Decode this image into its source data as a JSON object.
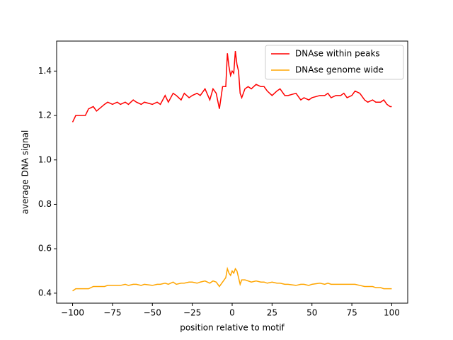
{
  "chart_data": {
    "type": "line",
    "xlabel": "position relative to motif",
    "ylabel": "average DNA signal",
    "xlim": [
      -110,
      110
    ],
    "ylim": [
      0.355,
      1.535
    ],
    "xticks": [
      {
        "value": -100,
        "label": "−100"
      },
      {
        "value": -75,
        "label": "−75"
      },
      {
        "value": -50,
        "label": "−50"
      },
      {
        "value": -25,
        "label": "−25"
      },
      0,
      25,
      50,
      75,
      100
    ],
    "yticks": [
      0.4,
      0.6,
      0.8,
      {
        "value": 1,
        "label": "1.0"
      },
      1.2,
      1.4
    ],
    "legend": "upper right",
    "x": [
      -100,
      -98,
      -95,
      -92,
      -90,
      -87,
      -85,
      -80,
      -78,
      -75,
      -72,
      -70,
      -67,
      -65,
      -62,
      -60,
      -57,
      -55,
      -50,
      -47,
      -45,
      -42,
      -40,
      -37,
      -35,
      -32,
      -30,
      -27,
      -25,
      -22,
      -20,
      -17,
      -14,
      -12,
      -10,
      -8,
      -6,
      -4,
      -3,
      -2,
      -1,
      0,
      1,
      2,
      3,
      4,
      5,
      6,
      8,
      10,
      12,
      15,
      18,
      20,
      22,
      25,
      28,
      30,
      33,
      35,
      40,
      43,
      45,
      48,
      50,
      55,
      58,
      60,
      62,
      65,
      68,
      70,
      72,
      75,
      77,
      80,
      83,
      85,
      88,
      90,
      93,
      95,
      97,
      99,
      100
    ],
    "series": [
      {
        "name": "DNAse within peaks",
        "color": "#ff0000",
        "values": [
          1.17,
          1.2,
          1.2,
          1.2,
          1.23,
          1.24,
          1.22,
          1.25,
          1.26,
          1.25,
          1.26,
          1.25,
          1.26,
          1.25,
          1.27,
          1.26,
          1.25,
          1.26,
          1.25,
          1.26,
          1.25,
          1.29,
          1.26,
          1.3,
          1.29,
          1.27,
          1.3,
          1.28,
          1.29,
          1.3,
          1.29,
          1.32,
          1.27,
          1.32,
          1.3,
          1.23,
          1.33,
          1.33,
          1.48,
          1.42,
          1.38,
          1.4,
          1.39,
          1.49,
          1.43,
          1.4,
          1.3,
          1.28,
          1.32,
          1.33,
          1.32,
          1.34,
          1.33,
          1.33,
          1.31,
          1.29,
          1.31,
          1.32,
          1.29,
          1.29,
          1.3,
          1.27,
          1.28,
          1.27,
          1.28,
          1.29,
          1.29,
          1.3,
          1.28,
          1.29,
          1.29,
          1.3,
          1.28,
          1.29,
          1.31,
          1.3,
          1.27,
          1.26,
          1.27,
          1.26,
          1.26,
          1.27,
          1.25,
          1.24,
          1.24
        ]
      },
      {
        "name": "DNAse genome wide",
        "color": "#ffa500",
        "values": [
          0.41,
          0.42,
          0.42,
          0.42,
          0.42,
          0.43,
          0.43,
          0.43,
          0.435,
          0.435,
          0.435,
          0.435,
          0.44,
          0.435,
          0.44,
          0.44,
          0.435,
          0.44,
          0.435,
          0.44,
          0.44,
          0.445,
          0.44,
          0.45,
          0.44,
          0.445,
          0.445,
          0.45,
          0.45,
          0.445,
          0.45,
          0.455,
          0.445,
          0.455,
          0.45,
          0.43,
          0.45,
          0.47,
          0.51,
          0.49,
          0.48,
          0.5,
          0.49,
          0.51,
          0.5,
          0.47,
          0.44,
          0.46,
          0.46,
          0.455,
          0.45,
          0.455,
          0.45,
          0.45,
          0.445,
          0.45,
          0.445,
          0.445,
          0.44,
          0.44,
          0.435,
          0.44,
          0.44,
          0.435,
          0.44,
          0.445,
          0.44,
          0.445,
          0.44,
          0.44,
          0.44,
          0.44,
          0.44,
          0.44,
          0.44,
          0.435,
          0.43,
          0.43,
          0.43,
          0.425,
          0.425,
          0.42,
          0.42,
          0.42,
          0.42
        ]
      }
    ]
  }
}
